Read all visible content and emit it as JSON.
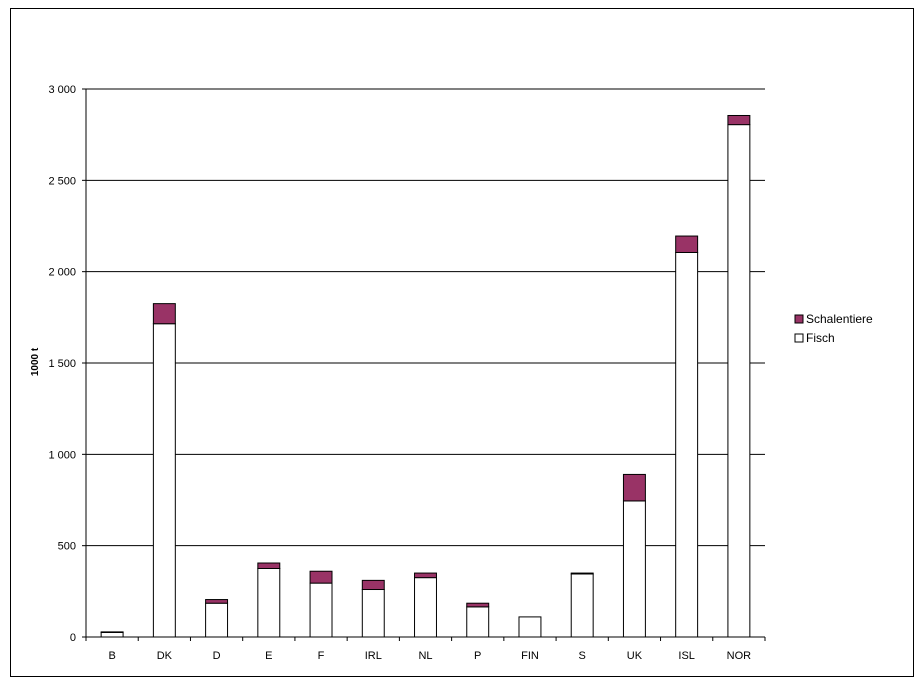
{
  "chart_data": {
    "type": "bar",
    "stacked": true,
    "title": "",
    "xlabel": "",
    "ylabel": "1000 t",
    "ylim": [
      0,
      3000
    ],
    "yticks": [
      0,
      500,
      1000,
      1500,
      2000,
      2500,
      3000
    ],
    "ytick_labels": [
      "0",
      "500",
      "1 000",
      "1 500",
      "2 000",
      "2 500",
      "3 000"
    ],
    "grid": true,
    "legend_position": "right",
    "categories": [
      "B",
      "DK",
      "D",
      "E",
      "F",
      "IRL",
      "NL",
      "P",
      "FIN",
      "S",
      "UK",
      "ISL",
      "NOR"
    ],
    "series": [
      {
        "name": "Fisch",
        "color": "#ffffff",
        "values": [
          25,
          1715,
          185,
          375,
          295,
          260,
          325,
          165,
          110,
          345,
          745,
          2105,
          2805
        ]
      },
      {
        "name": "Schalentiere",
        "color": "#993366",
        "values": [
          3,
          110,
          20,
          30,
          65,
          50,
          25,
          20,
          0,
          5,
          145,
          90,
          50
        ]
      }
    ],
    "legend": [
      "Schalentiere",
      "Fisch"
    ]
  }
}
